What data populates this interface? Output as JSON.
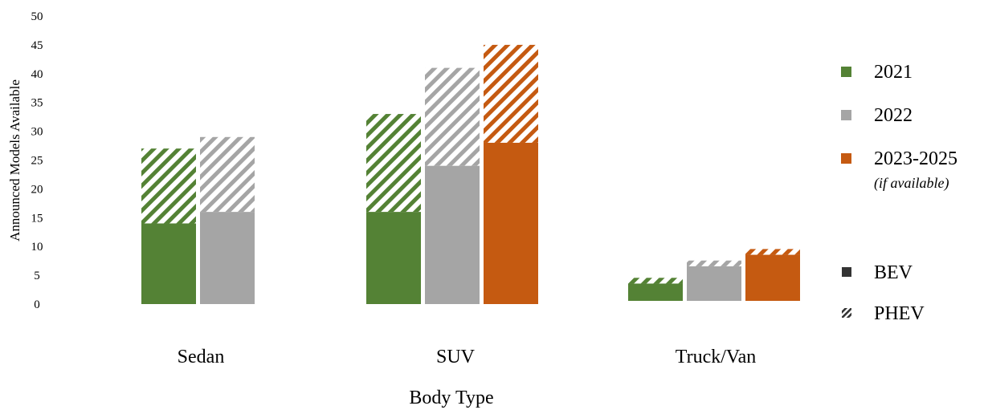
{
  "chart_data": {
    "type": "bar",
    "subtype": "grouped-stacked",
    "xlabel": "Body Type",
    "ylabel": "Announced Models Available",
    "ylim": [
      0,
      50
    ],
    "yticks": [
      "0",
      "5",
      "10",
      "15",
      "20",
      "25",
      "30",
      "35",
      "40",
      "45",
      "50"
    ],
    "grid": false,
    "categories": [
      "Sedan",
      "SUV",
      "Truck/Van"
    ],
    "groups": [
      {
        "category": "Sedan",
        "bars": [
          {
            "year": "2021",
            "bev": 14,
            "phev": 13
          },
          {
            "year": "2022",
            "bev": 16,
            "phev": 13
          }
        ]
      },
      {
        "category": "SUV",
        "bars": [
          {
            "year": "2021",
            "bev": 16,
            "phev": 17
          },
          {
            "year": "2022",
            "bev": 24,
            "phev": 17
          },
          {
            "year": "2023-2025",
            "bev": 28,
            "phev": 17
          }
        ]
      },
      {
        "category": "Truck/Van",
        "bars": [
          {
            "year": "2021",
            "bev": 3,
            "phev": 1
          },
          {
            "year": "2022",
            "bev": 6,
            "phev": 1
          },
          {
            "year": "2023-2025",
            "bev": 8,
            "phev": 1
          }
        ]
      }
    ],
    "legend": {
      "placement": "right",
      "years": [
        {
          "label": "2021",
          "color": "#548235"
        },
        {
          "label": "2022",
          "color": "#A5A5A5"
        },
        {
          "label": "2023-2025",
          "note": "(if available)",
          "color": "#C55A11"
        }
      ],
      "types": [
        {
          "label": "BEV",
          "pattern": "solid"
        },
        {
          "label": "PHEV",
          "pattern": "hatched"
        }
      ]
    }
  }
}
